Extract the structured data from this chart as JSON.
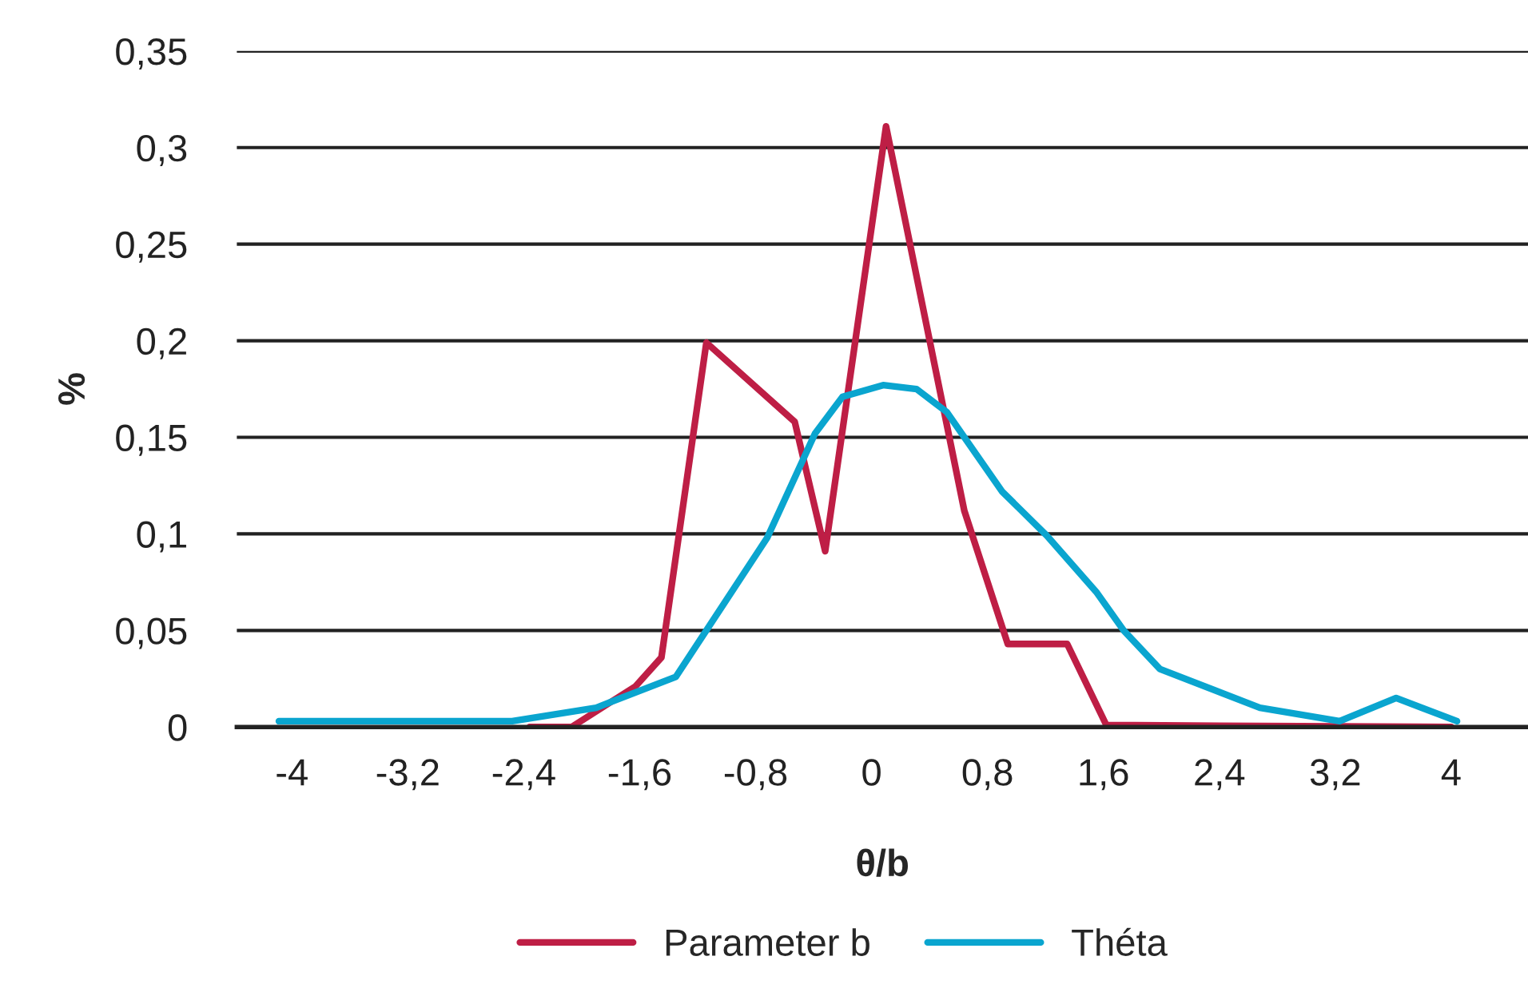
{
  "chart_data": {
    "type": "line",
    "xlabel": "θ/b",
    "ylabel": "%",
    "xlim": [
      -4.38,
      4.53
    ],
    "ylim": [
      0,
      0.35
    ],
    "xticks": [
      {
        "value": -4,
        "label": "-4"
      },
      {
        "value": -3.2,
        "label": "-3,2"
      },
      {
        "value": -2.4,
        "label": "-2,4"
      },
      {
        "value": -1.6,
        "label": "-1,6"
      },
      {
        "value": -0.8,
        "label": "-0,8"
      },
      {
        "value": 0,
        "label": "0"
      },
      {
        "value": 0.8,
        "label": "0,8"
      },
      {
        "value": 1.6,
        "label": "1,6"
      },
      {
        "value": 2.4,
        "label": "2,4"
      },
      {
        "value": 3.2,
        "label": "3,2"
      },
      {
        "value": 4,
        "label": "4"
      }
    ],
    "yticks": [
      {
        "value": 0,
        "label": "0"
      },
      {
        "value": 0.05,
        "label": "0,05"
      },
      {
        "value": 0.1,
        "label": "0,1"
      },
      {
        "value": 0.15,
        "label": "0,15"
      },
      {
        "value": 0.2,
        "label": "0,2"
      },
      {
        "value": 0.25,
        "label": "0,25"
      },
      {
        "value": 0.3,
        "label": "0,3"
      },
      {
        "value": 0.35,
        "label": "0,35"
      }
    ],
    "grid": "y",
    "legend": "bottom",
    "line_style": "solid",
    "series": [
      {
        "name": "Parameter b",
        "color": "#be1e45",
        "x": [
          -2.36,
          -2.07,
          -1.63,
          -1.45,
          -1.14,
          -0.53,
          -0.32,
          0.1,
          0.64,
          0.94,
          1.35,
          1.62,
          4.0
        ],
        "values": [
          0,
          0,
          0.021,
          0.036,
          0.199,
          0.158,
          0.091,
          0.311,
          0.112,
          0.043,
          0.043,
          0.001,
          0
        ]
      },
      {
        "name": "Théta",
        "color": "#0aa5cf",
        "x": [
          -4.09,
          -2.48,
          -1.9,
          -1.35,
          -0.72,
          -0.39,
          -0.2,
          0.08,
          0.31,
          0.52,
          0.9,
          1.21,
          1.55,
          1.74,
          1.99,
          2.68,
          3.23,
          3.62,
          4.04
        ],
        "values": [
          0.003,
          0.003,
          0.01,
          0.026,
          0.098,
          0.152,
          0.171,
          0.177,
          0.175,
          0.163,
          0.122,
          0.099,
          0.07,
          0.05,
          0.03,
          0.01,
          0.003,
          0.015,
          0.003
        ]
      }
    ]
  }
}
